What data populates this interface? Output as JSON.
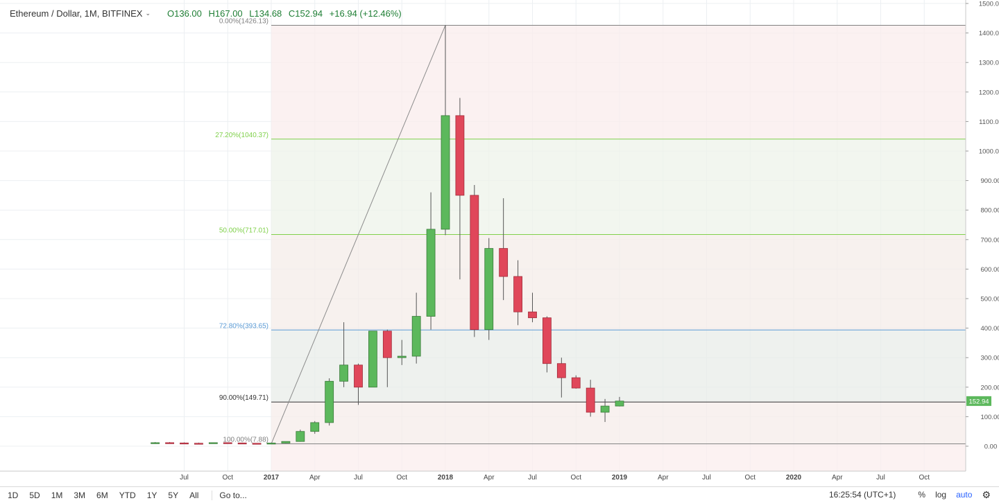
{
  "legend": {
    "symbol": "Ethereum / Dollar, 1M, BITFINEX",
    "open": "O136.00",
    "high": "H167.00",
    "low": "L134.68",
    "close": "C152.94",
    "change": "+16.94 (+12.46%)"
  },
  "bottom_bar": {
    "ranges": [
      "1D",
      "5D",
      "1M",
      "3M",
      "6M",
      "YTD",
      "1Y",
      "5Y",
      "All"
    ],
    "goto": "Go to...",
    "clock": "16:25:54 (UTC+1)",
    "percent": "%",
    "log": "log",
    "auto": "auto"
  },
  "colors": {
    "up": "#5cb85c",
    "down": "#e0475a",
    "fib_green": "#7fd04a",
    "fib_blue": "#5b9bd5"
  },
  "chart_data": {
    "type": "candlestick",
    "ylim": [
      -70,
      1500
    ],
    "y_ticks": [
      0,
      100,
      200,
      300,
      400,
      500,
      600,
      700,
      800,
      900,
      1000,
      1100,
      1200,
      1300,
      1400,
      1500
    ],
    "y_tick_labels": [
      "0.00",
      "100.00",
      "200.00",
      "300.00",
      "400.00",
      "500.00",
      "600.00",
      "700.00",
      "800.00",
      "900.00",
      "1000.00",
      "1100.00",
      "1200.00",
      "1300.00",
      "1400.00",
      "1500.00"
    ],
    "x_ticks": [
      "Jul",
      "Oct",
      "2017",
      "Apr",
      "Jul",
      "Oct",
      "2018",
      "Apr",
      "Jul",
      "Oct",
      "2019",
      "Apr",
      "Jul",
      "Oct",
      "2020",
      "Apr",
      "Jul",
      "Oct"
    ],
    "x_tick_months": [
      "2016-07",
      "2016-10",
      "2017-01",
      "2017-04",
      "2017-07",
      "2017-10",
      "2018-01",
      "2018-04",
      "2018-07",
      "2018-10",
      "2019-01",
      "2019-04",
      "2019-07",
      "2019-10",
      "2020-01",
      "2020-04",
      "2020-07",
      "2020-10"
    ],
    "candles": [
      {
        "month": "2016-05",
        "o": 10,
        "h": 14,
        "l": 8,
        "c": 12
      },
      {
        "month": "2016-06",
        "o": 12,
        "h": 14,
        "l": 10,
        "c": 11
      },
      {
        "month": "2016-07",
        "o": 11,
        "h": 13,
        "l": 9,
        "c": 10
      },
      {
        "month": "2016-08",
        "o": 10,
        "h": 12,
        "l": 9,
        "c": 9
      },
      {
        "month": "2016-09",
        "o": 9,
        "h": 12,
        "l": 9,
        "c": 12
      },
      {
        "month": "2016-10",
        "o": 12,
        "h": 13,
        "l": 10,
        "c": 11
      },
      {
        "month": "2016-11",
        "o": 11,
        "h": 12,
        "l": 9,
        "c": 10
      },
      {
        "month": "2016-12",
        "o": 10,
        "h": 10,
        "l": 7.88,
        "c": 8
      },
      {
        "month": "2017-01",
        "o": 8,
        "h": 12,
        "l": 8,
        "c": 10.7
      },
      {
        "month": "2017-02",
        "o": 10.7,
        "h": 16,
        "l": 10,
        "c": 16
      },
      {
        "month": "2017-03",
        "o": 16,
        "h": 56,
        "l": 15,
        "c": 50
      },
      {
        "month": "2017-04",
        "o": 50,
        "h": 85,
        "l": 42,
        "c": 80
      },
      {
        "month": "2017-05",
        "o": 80,
        "h": 230,
        "l": 70,
        "c": 220
      },
      {
        "month": "2017-06",
        "o": 220,
        "h": 420,
        "l": 200,
        "c": 275
      },
      {
        "month": "2017-07",
        "o": 275,
        "h": 280,
        "l": 140,
        "c": 200
      },
      {
        "month": "2017-08",
        "o": 200,
        "h": 390,
        "l": 200,
        "c": 390
      },
      {
        "month": "2017-09",
        "o": 390,
        "h": 395,
        "l": 200,
        "c": 300
      },
      {
        "month": "2017-10",
        "o": 300,
        "h": 360,
        "l": 275,
        "c": 305
      },
      {
        "month": "2017-11",
        "o": 305,
        "h": 520,
        "l": 280,
        "c": 440
      },
      {
        "month": "2017-12",
        "o": 440,
        "h": 860,
        "l": 395,
        "c": 735
      },
      {
        "month": "2018-01",
        "o": 735,
        "h": 1426.13,
        "l": 715,
        "c": 1120
      },
      {
        "month": "2018-02",
        "o": 1120,
        "h": 1180,
        "l": 565,
        "c": 850
      },
      {
        "month": "2018-03",
        "o": 850,
        "h": 885,
        "l": 370,
        "c": 395
      },
      {
        "month": "2018-04",
        "o": 395,
        "h": 705,
        "l": 360,
        "c": 670
      },
      {
        "month": "2018-05",
        "o": 670,
        "h": 840,
        "l": 495,
        "c": 575
      },
      {
        "month": "2018-06",
        "o": 575,
        "h": 630,
        "l": 410,
        "c": 455
      },
      {
        "month": "2018-07",
        "o": 455,
        "h": 520,
        "l": 420,
        "c": 435
      },
      {
        "month": "2018-08",
        "o": 435,
        "h": 440,
        "l": 250,
        "c": 280
      },
      {
        "month": "2018-09",
        "o": 280,
        "h": 300,
        "l": 165,
        "c": 232
      },
      {
        "month": "2018-10",
        "o": 232,
        "h": 240,
        "l": 195,
        "c": 197
      },
      {
        "month": "2018-11",
        "o": 197,
        "h": 225,
        "l": 100,
        "c": 115
      },
      {
        "month": "2018-12",
        "o": 115,
        "h": 160,
        "l": 82,
        "c": 136
      },
      {
        "month": "2019-01",
        "o": 136,
        "h": 167,
        "l": 134.68,
        "c": 152.94
      }
    ],
    "fib_levels": [
      {
        "label": "0.00%(1426.13)",
        "price": 1426.13,
        "color": "#808080"
      },
      {
        "label": "27.20%(1040.37)",
        "price": 1040.37,
        "color": "#7fd04a"
      },
      {
        "label": "50.00%(717.01)",
        "price": 717.01,
        "color": "#7fd04a"
      },
      {
        "label": "72.80%(393.65)",
        "price": 393.65,
        "color": "#5b9bd5"
      },
      {
        "label": "90.00%(149.71)",
        "price": 149.71,
        "color": "#333333"
      },
      {
        "label": "100.00%(7.88)",
        "price": 7.88,
        "color": "#808080"
      }
    ],
    "trend_line": {
      "from": {
        "month": "2017-01",
        "price": 7.88
      },
      "to": {
        "month": "2018-01",
        "price": 1426.13
      }
    },
    "last_price_label": "152.94"
  }
}
